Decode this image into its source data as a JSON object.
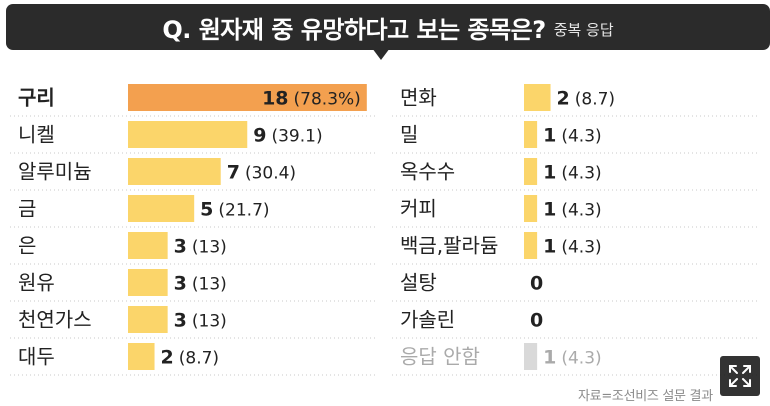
{
  "header": {
    "title": "Q. 원자재 중 유망하다고 보는 종목은?",
    "subtitle": "중복 응답"
  },
  "source": "자료=조선비즈 설문 결과",
  "chart_data": {
    "type": "bar",
    "orientation": "horizontal",
    "unit": "%",
    "columns": [
      {
        "items": [
          {
            "label": "구리",
            "count": "18",
            "percent": "(78.3%)",
            "value": 78.3,
            "highlight": true
          },
          {
            "label": "니켈",
            "count": "9",
            "percent": "(39.1)",
            "value": 39.1
          },
          {
            "label": "알루미늄",
            "count": "7",
            "percent": "(30.4)",
            "value": 30.4
          },
          {
            "label": "금",
            "count": "5",
            "percent": "(21.7)",
            "value": 21.7
          },
          {
            "label": "은",
            "count": "3",
            "percent": "(13)",
            "value": 13
          },
          {
            "label": "원유",
            "count": "3",
            "percent": "(13)",
            "value": 13
          },
          {
            "label": "천연가스",
            "count": "3",
            "percent": "(13)",
            "value": 13
          },
          {
            "label": "대두",
            "count": "2",
            "percent": "(8.7)",
            "value": 8.7
          }
        ]
      },
      {
        "items": [
          {
            "label": "면화",
            "count": "2",
            "percent": "(8.7)",
            "value": 8.7
          },
          {
            "label": "밀",
            "count": "1",
            "percent": "(4.3)",
            "value": 4.3
          },
          {
            "label": "옥수수",
            "count": "1",
            "percent": "(4.3)",
            "value": 4.3
          },
          {
            "label": "커피",
            "count": "1",
            "percent": "(4.3)",
            "value": 4.3
          },
          {
            "label": "백금,팔라듐",
            "count": "1",
            "percent": "(4.3)",
            "value": 4.3
          },
          {
            "label": "설탕",
            "count": "0",
            "percent": "",
            "value": 0
          },
          {
            "label": "가솔린",
            "count": "0",
            "percent": "",
            "value": 0
          },
          {
            "label": "응답 안함",
            "count": "1",
            "percent": "(4.3)",
            "value": 4.3,
            "muted": true
          }
        ]
      }
    ],
    "colors": {
      "bar": "#fbd56a",
      "highlight_bar": "#f3a04f",
      "muted_bar": "#d9d9d9",
      "label": "#222222",
      "muted_label": "#aaaaaa"
    }
  },
  "icons": {
    "expand": "expand-icon"
  }
}
